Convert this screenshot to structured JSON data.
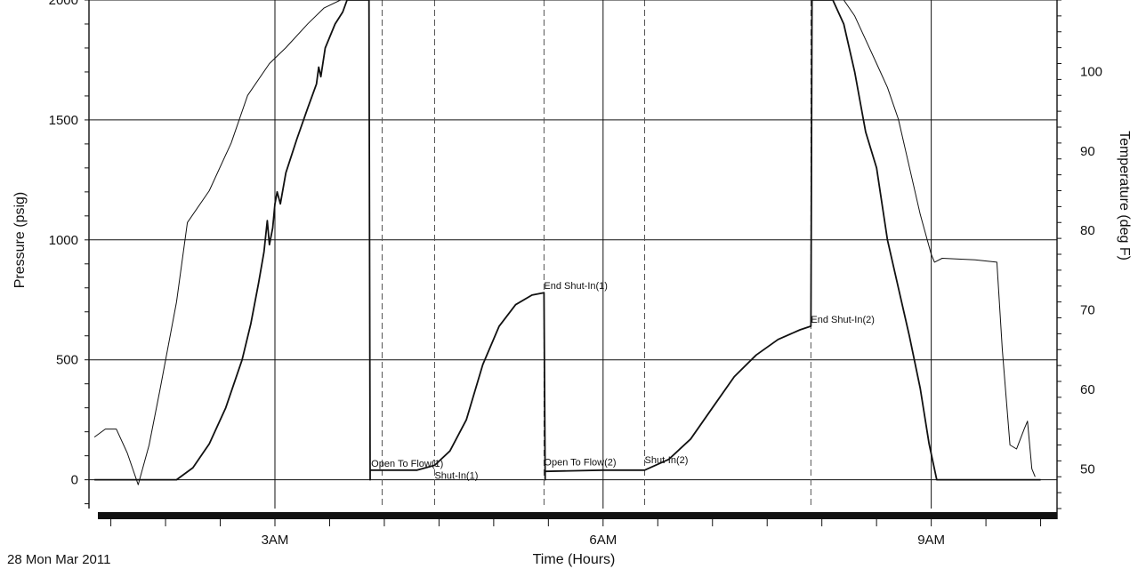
{
  "chart_data": {
    "type": "line",
    "title": "",
    "date_label": "28 Mon Mar 2011",
    "xlabel": "Time (Hours)",
    "ylabel": "Pressure (psig)",
    "y2label": "Temperature (deg F)",
    "x_ticks": [
      {
        "label": "3AM",
        "hour": 3
      },
      {
        "label": "6AM",
        "hour": 6
      },
      {
        "label": "9AM",
        "hour": 9
      }
    ],
    "y_ticks": [
      0,
      500,
      1000,
      1500,
      2000
    ],
    "y2_ticks": [
      50,
      60,
      70,
      80,
      90,
      100
    ],
    "xlim": [
      1.3,
      10.15
    ],
    "ylim": [
      -120,
      2000
    ],
    "y2lim": [
      45,
      109
    ],
    "grid": true,
    "annotations": [
      {
        "text": "Open To Flow(1)",
        "hour": 3.88,
        "pressure": 40
      },
      {
        "text": "Shut-In(1)",
        "hour": 4.46,
        "pressure": -10
      },
      {
        "text": "End Shut-In(1)",
        "hour": 5.46,
        "pressure": 780
      },
      {
        "text": "Open To Flow(2)",
        "hour": 5.46,
        "pressure": 45
      },
      {
        "text": "Shut-In(2)",
        "hour": 6.38,
        "pressure": 55
      },
      {
        "text": "End Shut-In(2)",
        "hour": 7.9,
        "pressure": 640
      }
    ],
    "event_lines_hours": [
      3.98,
      4.46,
      5.46,
      6.38,
      7.9
    ],
    "series": [
      {
        "name": "",
        "axis": "pressure",
        "points": [
          [
            1.35,
            0
          ],
          [
            1.95,
            0
          ],
          [
            2.1,
            0
          ],
          [
            2.25,
            50
          ],
          [
            2.4,
            150
          ],
          [
            2.55,
            300
          ],
          [
            2.7,
            500
          ],
          [
            2.78,
            650
          ],
          [
            2.85,
            820
          ],
          [
            2.9,
            950
          ],
          [
            2.93,
            1080
          ],
          [
            2.95,
            980
          ],
          [
            2.98,
            1050
          ],
          [
            3.0,
            1150
          ],
          [
            3.02,
            1200
          ],
          [
            3.05,
            1150
          ],
          [
            3.1,
            1280
          ],
          [
            3.2,
            1420
          ],
          [
            3.3,
            1550
          ],
          [
            3.38,
            1650
          ],
          [
            3.4,
            1720
          ],
          [
            3.42,
            1680
          ],
          [
            3.46,
            1800
          ],
          [
            3.55,
            1900
          ],
          [
            3.62,
            1950
          ],
          [
            3.66,
            2000
          ],
          [
            3.86,
            2000
          ],
          [
            3.87,
            0
          ],
          [
            3.87,
            40
          ],
          [
            4.3,
            40
          ],
          [
            4.46,
            60
          ],
          [
            4.6,
            120
          ],
          [
            4.75,
            250
          ],
          [
            4.9,
            480
          ],
          [
            5.05,
            640
          ],
          [
            5.2,
            730
          ],
          [
            5.35,
            770
          ],
          [
            5.46,
            780
          ],
          [
            5.47,
            0
          ],
          [
            5.47,
            35
          ],
          [
            6.0,
            40
          ],
          [
            6.38,
            40
          ],
          [
            6.6,
            85
          ],
          [
            6.8,
            170
          ],
          [
            7.0,
            300
          ],
          [
            7.2,
            430
          ],
          [
            7.4,
            520
          ],
          [
            7.6,
            585
          ],
          [
            7.8,
            625
          ],
          [
            7.9,
            640
          ],
          [
            7.91,
            2000
          ],
          [
            8.1,
            2000
          ],
          [
            8.2,
            1900
          ],
          [
            8.3,
            1700
          ],
          [
            8.4,
            1450
          ],
          [
            8.5,
            1300
          ],
          [
            8.6,
            1000
          ],
          [
            8.7,
            800
          ],
          [
            8.8,
            600
          ],
          [
            8.9,
            380
          ],
          [
            8.98,
            150
          ],
          [
            9.05,
            0
          ],
          [
            10.0,
            0
          ]
        ]
      },
      {
        "name": "",
        "axis": "temperature",
        "points": [
          [
            1.35,
            54
          ],
          [
            1.45,
            55
          ],
          [
            1.55,
            55
          ],
          [
            1.65,
            52
          ],
          [
            1.75,
            48
          ],
          [
            1.85,
            53
          ],
          [
            1.95,
            60
          ],
          [
            2.1,
            71
          ],
          [
            2.2,
            81
          ],
          [
            2.4,
            85
          ],
          [
            2.6,
            91
          ],
          [
            2.75,
            97
          ],
          [
            2.95,
            101
          ],
          [
            3.1,
            103
          ],
          [
            3.3,
            106
          ],
          [
            3.45,
            108
          ],
          [
            3.6,
            109
          ],
          [
            8.2,
            109
          ],
          [
            8.3,
            107
          ],
          [
            8.4,
            104
          ],
          [
            8.5,
            101
          ],
          [
            8.6,
            98
          ],
          [
            8.7,
            94
          ],
          [
            8.8,
            88
          ],
          [
            8.9,
            82
          ],
          [
            9.0,
            77
          ],
          [
            9.03,
            76
          ],
          [
            9.1,
            76.5
          ],
          [
            9.4,
            76.3
          ],
          [
            9.6,
            76
          ],
          [
            9.65,
            65
          ],
          [
            9.72,
            53
          ],
          [
            9.78,
            52.5
          ],
          [
            9.85,
            55
          ],
          [
            9.88,
            56
          ],
          [
            9.92,
            50
          ],
          [
            9.95,
            49
          ]
        ]
      }
    ]
  }
}
